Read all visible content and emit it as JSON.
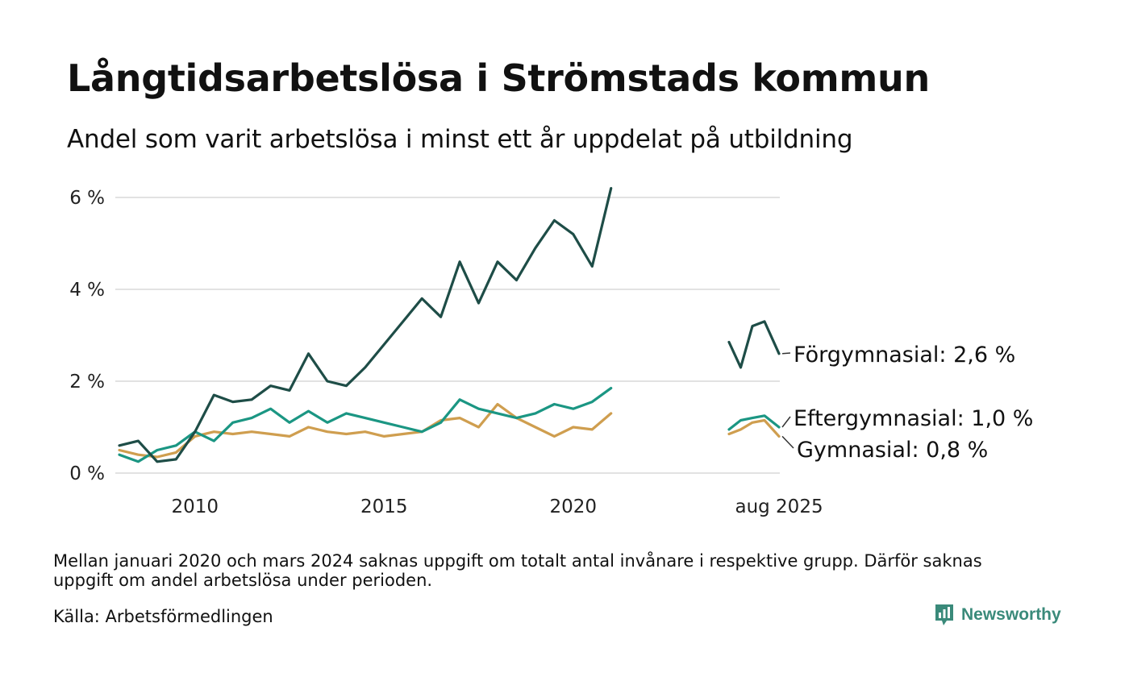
{
  "title": "Långtidsarbetslösa i Strömstads kommun",
  "subtitle": "Andel som varit arbetslösa i minst ett år uppdelat på utbildning",
  "note": "Mellan januari 2020 och mars 2024 saknas uppgift om totalt antal invånare i respektive grupp. Därför saknas uppgift om andel arbetslösa under perioden.",
  "source": "Källa: Arbetsförmedlingen",
  "brand": {
    "name": "Newsworthy",
    "color": "#3a8a7a"
  },
  "colors": {
    "grid": "#e2e2e2",
    "axis_text": "#222222"
  },
  "chart_data": {
    "type": "line",
    "title": "Långtidsarbetslösa i Strömstads kommun",
    "subtitle": "Andel som varit arbetslösa i minst ett år uppdelat på utbildning",
    "xlabel": "",
    "ylabel": "",
    "ylim": [
      0,
      6
    ],
    "yticks": [
      0,
      2,
      4,
      6
    ],
    "ytick_labels": [
      "0 %",
      "2 %",
      "4 %",
      "6 %"
    ],
    "xticks": [
      2010,
      2015,
      2020,
      2025.58
    ],
    "xtick_labels": [
      "2010",
      "2015",
      "2020",
      "aug 2025"
    ],
    "grid": true,
    "legend": "end-labels",
    "x_axis_note": "x values in years (decimal); left segment Jan 2008 – Jan 2021, right segment Mar 2024 – Aug 2025",
    "series": [
      {
        "label": "Förgymnasial: 2,6 %",
        "color": "#1e4d47",
        "segments": [
          {
            "x": [
              2008.0,
              2008.5,
              2009.0,
              2009.5,
              2010.0,
              2010.5,
              2011.0,
              2011.5,
              2012.0,
              2012.5,
              2013.0,
              2013.5,
              2014.0,
              2014.5,
              2015.0,
              2015.5,
              2016.0,
              2016.5,
              2017.0,
              2017.5,
              2018.0,
              2018.5,
              2019.0,
              2019.5,
              2020.0,
              2020.5,
              2021.0
            ],
            "y": [
              0.6,
              0.7,
              0.25,
              0.3,
              0.9,
              1.7,
              1.55,
              1.6,
              1.9,
              1.8,
              2.6,
              2.0,
              1.9,
              2.3,
              2.8,
              3.3,
              3.8,
              3.4,
              4.6,
              3.7,
              4.6,
              4.2,
              4.9,
              5.5,
              5.2,
              4.5,
              6.2
            ]
          },
          {
            "x": [
              2024.17,
              2024.5,
              2024.83,
              2025.17,
              2025.58
            ],
            "y": [
              2.85,
              2.3,
              3.2,
              3.3,
              2.6
            ]
          }
        ]
      },
      {
        "label": "Eftergymnasial: 1,0 %",
        "color": "#1b9683",
        "segments": [
          {
            "x": [
              2008.0,
              2008.5,
              2009.0,
              2009.5,
              2010.0,
              2010.5,
              2011.0,
              2011.5,
              2012.0,
              2012.5,
              2013.0,
              2013.5,
              2014.0,
              2014.5,
              2015.0,
              2015.5,
              2016.0,
              2016.5,
              2017.0,
              2017.5,
              2018.0,
              2018.5,
              2019.0,
              2019.5,
              2020.0,
              2020.5,
              2021.0
            ],
            "y": [
              0.4,
              0.25,
              0.5,
              0.6,
              0.9,
              0.7,
              1.1,
              1.2,
              1.4,
              1.1,
              1.35,
              1.1,
              1.3,
              1.2,
              1.1,
              1.0,
              0.9,
              1.1,
              1.6,
              1.4,
              1.3,
              1.2,
              1.3,
              1.5,
              1.4,
              1.55,
              1.85
            ]
          },
          {
            "x": [
              2024.17,
              2024.5,
              2024.83,
              2025.17,
              2025.58
            ],
            "y": [
              0.95,
              1.15,
              1.2,
              1.25,
              1.0
            ]
          }
        ]
      },
      {
        "label": "Gymnasial: 0,8 %",
        "color": "#cf9e4f",
        "segments": [
          {
            "x": [
              2008.0,
              2008.5,
              2009.0,
              2009.5,
              2010.0,
              2010.5,
              2011.0,
              2011.5,
              2012.0,
              2012.5,
              2013.0,
              2013.5,
              2014.0,
              2014.5,
              2015.0,
              2015.5,
              2016.0,
              2016.5,
              2017.0,
              2017.5,
              2018.0,
              2018.5,
              2019.0,
              2019.5,
              2020.0,
              2020.5,
              2021.0
            ],
            "y": [
              0.5,
              0.4,
              0.35,
              0.45,
              0.8,
              0.9,
              0.85,
              0.9,
              0.85,
              0.8,
              1.0,
              0.9,
              0.85,
              0.9,
              0.8,
              0.85,
              0.9,
              1.15,
              1.2,
              1.0,
              1.5,
              1.2,
              1.0,
              0.8,
              1.0,
              0.95,
              1.3
            ]
          },
          {
            "x": [
              2024.17,
              2024.5,
              2024.83,
              2025.17,
              2025.58
            ],
            "y": [
              0.85,
              0.95,
              1.1,
              1.15,
              0.8
            ]
          }
        ]
      }
    ]
  }
}
